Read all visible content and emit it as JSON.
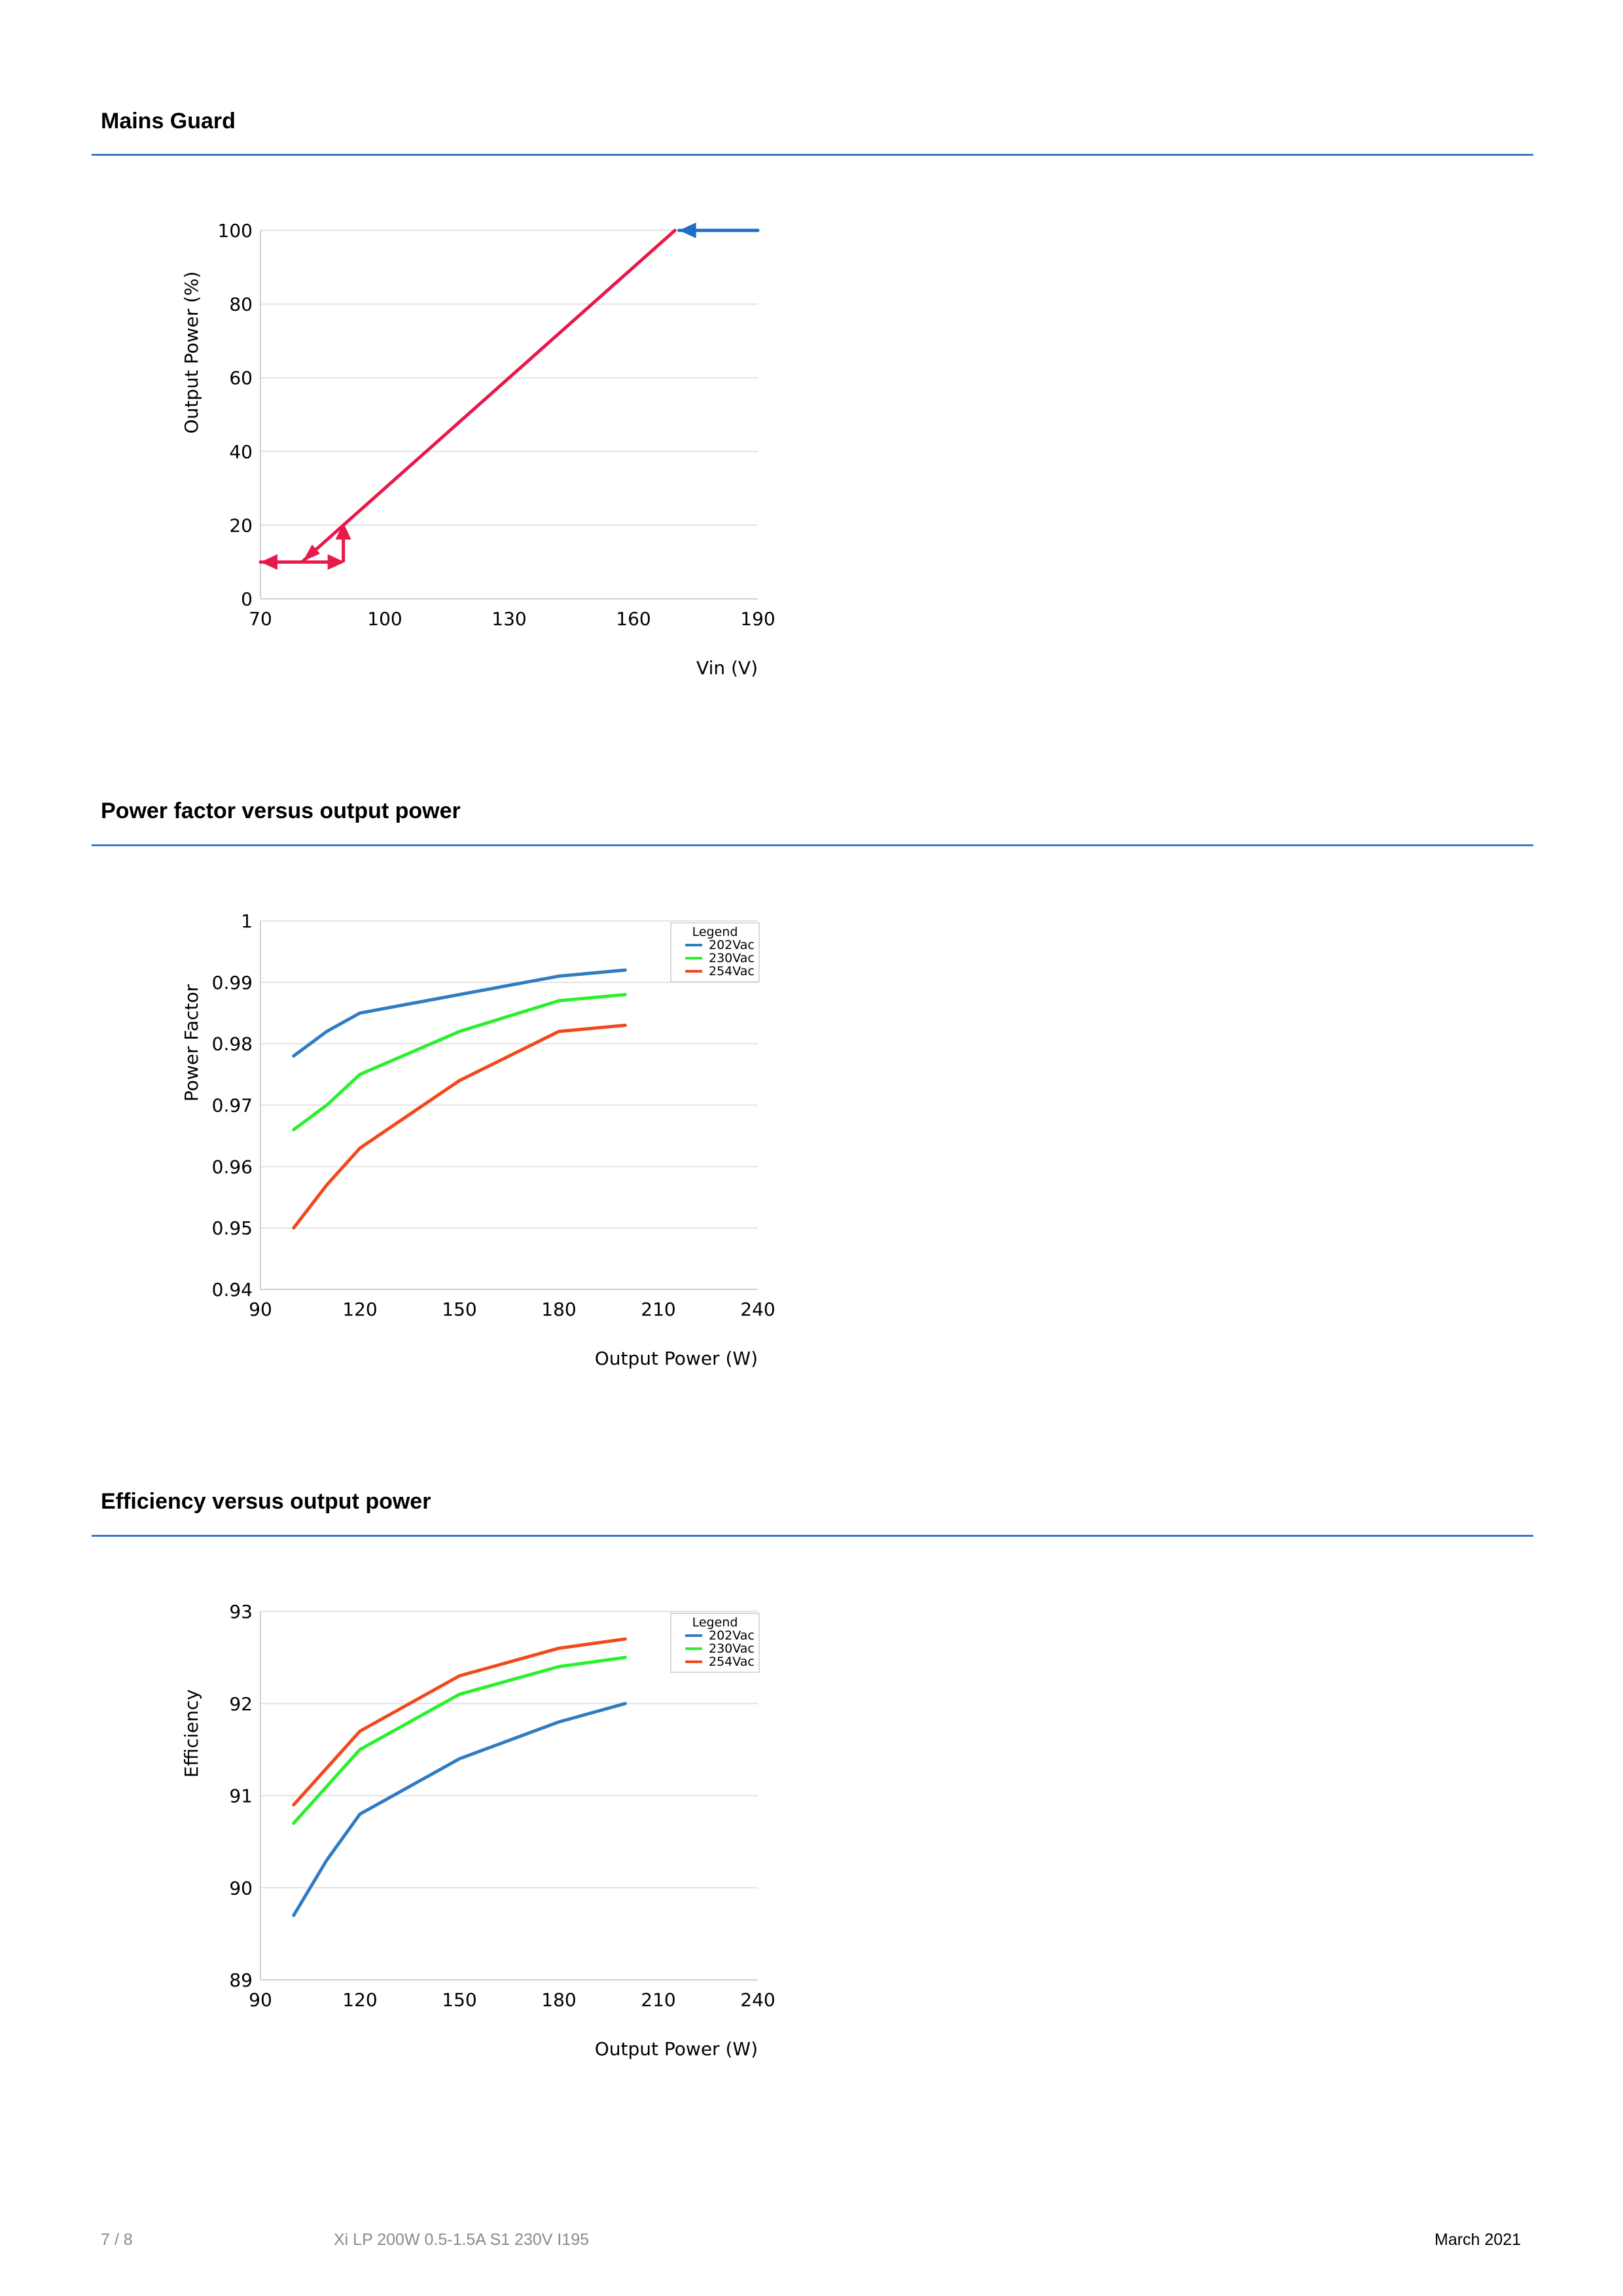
{
  "sections": [
    {
      "title": "Mains Guard"
    },
    {
      "title": "Power factor versus output power"
    },
    {
      "title": "Efficiency versus output power"
    }
  ],
  "chart_data": [
    {
      "type": "line",
      "title": "",
      "xlabel": "Vin (V)",
      "ylabel": "Output Power (%)",
      "xlim": [
        70,
        190
      ],
      "ylim": [
        0,
        100
      ],
      "xticks": [
        70,
        100,
        130,
        160,
        190
      ],
      "yticks": [
        0,
        20,
        40,
        60,
        80,
        100
      ],
      "grid": true,
      "series": [
        {
          "color": "#e8194b",
          "x": [
            70,
            80,
            170
          ],
          "y": [
            10,
            10,
            100
          ],
          "arrows": "hysteresis"
        },
        {
          "color": "#1a6fc4",
          "x": [
            171,
            190
          ],
          "y": [
            100,
            100
          ],
          "arrows": "pointing-left"
        }
      ],
      "hysteresis": {
        "color": "#e8194b",
        "x_low": 70,
        "x_mid": 80,
        "x_high": 90,
        "y_low": 10,
        "y_high": 20
      }
    },
    {
      "type": "line",
      "title": "",
      "xlabel": "Output Power (W)",
      "ylabel": "Power Factor",
      "xlim": [
        90,
        240
      ],
      "ylim": [
        0.94,
        1
      ],
      "xticks": [
        90,
        120,
        150,
        180,
        210,
        240
      ],
      "yticks": [
        "0.94",
        "0.95",
        "0.96",
        "0.97",
        "0.98",
        "0.99",
        "1"
      ],
      "grid": true,
      "legend": {
        "title": "Legend",
        "position": "top-right"
      },
      "series": [
        {
          "name": "202Vac",
          "color": "#2f7cc1",
          "x": [
            100,
            110,
            120,
            150,
            180,
            200
          ],
          "y": [
            0.978,
            0.982,
            0.985,
            0.988,
            0.991,
            0.992
          ]
        },
        {
          "name": "230Vac",
          "color": "#29f12c",
          "x": [
            100,
            110,
            120,
            150,
            180,
            200
          ],
          "y": [
            0.966,
            0.97,
            0.975,
            0.982,
            0.987,
            0.988
          ]
        },
        {
          "name": "254Vac",
          "color": "#f3471d",
          "x": [
            100,
            110,
            120,
            150,
            180,
            200
          ],
          "y": [
            0.95,
            0.957,
            0.963,
            0.974,
            0.982,
            0.983
          ]
        }
      ]
    },
    {
      "type": "line",
      "title": "",
      "xlabel": "Output Power (W)",
      "ylabel": "Efficiency",
      "xlim": [
        90,
        240
      ],
      "ylim": [
        89,
        93
      ],
      "xticks": [
        90,
        120,
        150,
        180,
        210,
        240
      ],
      "yticks": [
        "89",
        "90",
        "91",
        "92",
        "93"
      ],
      "grid": true,
      "legend": {
        "title": "Legend",
        "position": "top-right"
      },
      "series": [
        {
          "name": "202Vac",
          "color": "#2f7cc1",
          "x": [
            100,
            110,
            120,
            150,
            180,
            200
          ],
          "y": [
            89.7,
            90.3,
            90.8,
            91.4,
            91.8,
            92.0
          ]
        },
        {
          "name": "230Vac",
          "color": "#29f12c",
          "x": [
            100,
            110,
            120,
            150,
            180,
            200
          ],
          "y": [
            90.7,
            91.1,
            91.5,
            92.1,
            92.4,
            92.5
          ]
        },
        {
          "name": "254Vac",
          "color": "#f3471d",
          "x": [
            100,
            110,
            120,
            150,
            180,
            200
          ],
          "y": [
            90.9,
            91.3,
            91.7,
            92.3,
            92.6,
            92.7
          ]
        }
      ]
    }
  ],
  "footer": {
    "page": "7 / 8",
    "product": "Xi LP 200W 0.5-1.5A S1 230V I195",
    "date": "March 2021"
  }
}
